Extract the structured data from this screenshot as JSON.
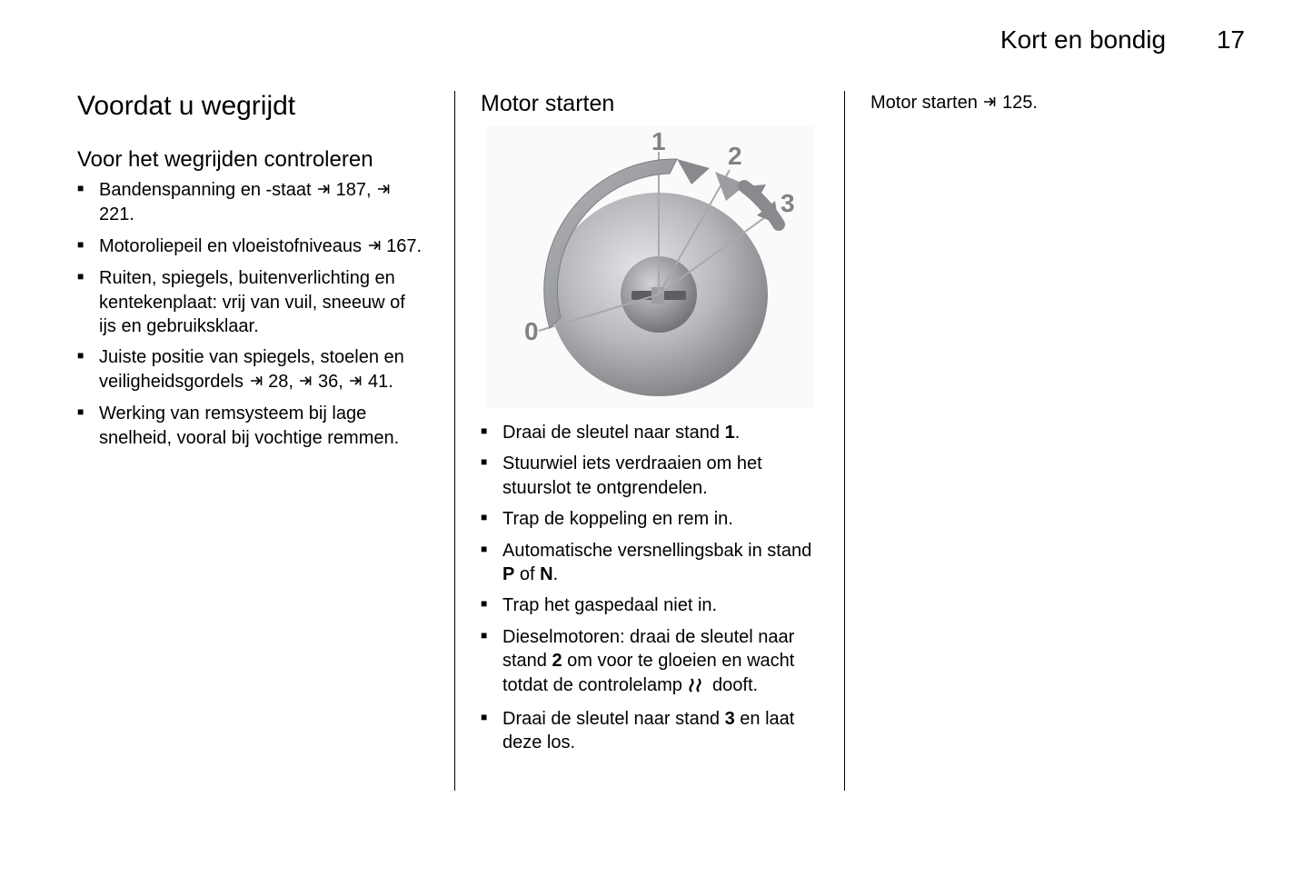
{
  "header": {
    "chapter": "Kort en bondig",
    "page": "17"
  },
  "col1": {
    "h1": "Voordat u wegrijdt",
    "h2": "Voor het wegrijden controleren",
    "items": [
      {
        "pre": "Bandenspanning en -staat ",
        "ref1": "187",
        "mid": ", ",
        "ref2": "221",
        "post": "."
      },
      {
        "pre": "Motoroliepeil en vloeistofniveaus ",
        "ref1": "167",
        "post": "."
      },
      {
        "pre": "Ruiten, spiegels, buitenverlichting en kentekenplaat: vrij van vuil, sneeuw of ijs en gebruiksklaar."
      },
      {
        "pre": "Juiste positie van spiegels, stoelen en veiligheidsgordels ",
        "ref1": "28",
        "mid": ", ",
        "ref2": "36",
        "mid2": ", ",
        "ref3": "41",
        "post": "."
      },
      {
        "pre": "Werking van remsysteem bij lage snelheid, vooral bij vochtige remmen."
      }
    ]
  },
  "col2": {
    "h2": "Motor starten",
    "figure": {
      "labels": {
        "p0": "0",
        "p1": "1",
        "p2": "2",
        "p3": "3"
      },
      "colors": {
        "dial_grad_light": "#d4d5d7",
        "dial_grad_dark": "#8a8c90",
        "center_light": "#c8cacd",
        "center_dark": "#6f7175",
        "line_stroke": "#a7a9ad",
        "arc_fill": "#9a9da1",
        "arc_edge": "#7b7e82",
        "arrow_light": "#b7b9bd",
        "arrow_dark": "#808286",
        "slot": "#5c5e61",
        "bg": "#fafafa",
        "label": "#808284"
      }
    },
    "items": [
      {
        "pre": "Draai de sleutel naar stand ",
        "b1": "1",
        "post": "."
      },
      {
        "pre": "Stuurwiel iets verdraaien om het stuurslot te ontgrendelen."
      },
      {
        "pre": "Trap de koppeling en rem in."
      },
      {
        "pre": "Automatische versnellingsbak in stand ",
        "b1": "P",
        "mid": " of ",
        "b2": "N",
        "post": "."
      },
      {
        "pre": "Trap het gaspedaal niet in."
      },
      {
        "pre": "Dieselmotoren: draai de sleutel naar stand ",
        "b1": "2",
        "mid": " om voor te gloeien en wacht totdat de controlelamp ",
        "icon": "preheat",
        "post": " dooft."
      },
      {
        "pre": "Draai de sleutel naar stand ",
        "b1": "3",
        "post": " en laat deze los."
      }
    ]
  },
  "col3": {
    "text_pre": "Motor starten ",
    "ref": "125",
    "text_post": "."
  }
}
